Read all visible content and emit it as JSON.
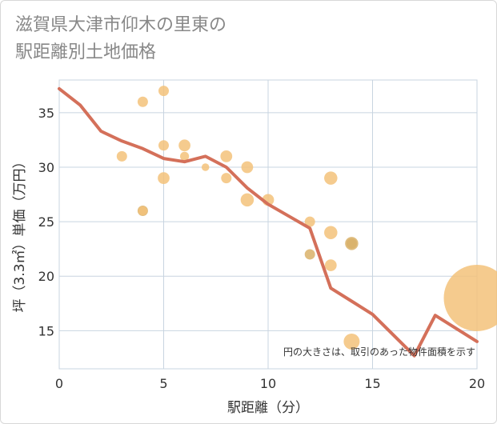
{
  "chart_data": {
    "type": "scatter",
    "title_lines": [
      "滋賀県大津市仰木の里東の",
      "駅距離別土地価格"
    ],
    "xlabel": "駅距離（分）",
    "ylabel": "坪（3.3㎡）単価（万円）",
    "note": "円の大きさは、取引のあった物件面積を示す",
    "xlim": [
      0,
      20
    ],
    "ylim": [
      11.5,
      38
    ],
    "x_ticks": [
      0,
      5,
      10,
      15,
      20
    ],
    "y_ticks": [
      15,
      20,
      25,
      30,
      35
    ],
    "grid": true,
    "colors": {
      "points": "#f3c27a",
      "points_dark": "#d9b26a",
      "line": "#d4705a",
      "grid": "#c8d4e0"
    },
    "points": [
      {
        "x": 3,
        "y": 31,
        "size": 2
      },
      {
        "x": 4,
        "y": 36,
        "size": 2
      },
      {
        "x": 4,
        "y": 26,
        "size": 2
      },
      {
        "x": 4,
        "y": 26,
        "size": 1.5
      },
      {
        "x": 5,
        "y": 37,
        "size": 2
      },
      {
        "x": 5,
        "y": 32,
        "size": 2
      },
      {
        "x": 5,
        "y": 29,
        "size": 2.5
      },
      {
        "x": 6,
        "y": 32,
        "size": 2.5
      },
      {
        "x": 6,
        "y": 31,
        "size": 1.5
      },
      {
        "x": 7,
        "y": 30,
        "size": 1
      },
      {
        "x": 8,
        "y": 31,
        "size": 2.5
      },
      {
        "x": 8,
        "y": 29,
        "size": 2
      },
      {
        "x": 9,
        "y": 30,
        "size": 2.5
      },
      {
        "x": 9,
        "y": 27,
        "size": 3
      },
      {
        "x": 10,
        "y": 27,
        "size": 2.5
      },
      {
        "x": 12,
        "y": 25,
        "size": 2
      },
      {
        "x": 12,
        "y": 22,
        "size": 2
      },
      {
        "x": 13,
        "y": 29,
        "size": 3
      },
      {
        "x": 13,
        "y": 24,
        "size": 3
      },
      {
        "x": 13,
        "y": 21,
        "size": 2.5
      },
      {
        "x": 14,
        "y": 23,
        "size": 3
      },
      {
        "x": 14,
        "y": 23,
        "size": 2
      },
      {
        "x": 14,
        "y": 14,
        "size": 4
      },
      {
        "x": 20,
        "y": 18,
        "size": 22
      }
    ],
    "dark_points": [
      {
        "x": 4,
        "y": 26
      },
      {
        "x": 12,
        "y": 22
      },
      {
        "x": 14,
        "y": 23
      }
    ],
    "trend_line": {
      "x": [
        0,
        1,
        2,
        3,
        4,
        5,
        6,
        7,
        8,
        9,
        10,
        11,
        12,
        13,
        14,
        15,
        16,
        17,
        18,
        19,
        20
      ],
      "y": [
        37.2,
        35.7,
        33.3,
        32.4,
        31.7,
        30.8,
        30.5,
        31.0,
        30.0,
        28.1,
        26.6,
        25.5,
        24.4,
        18.9,
        17.7,
        16.5,
        14.6,
        12.7,
        16.4,
        15.2,
        14.0
      ]
    }
  }
}
